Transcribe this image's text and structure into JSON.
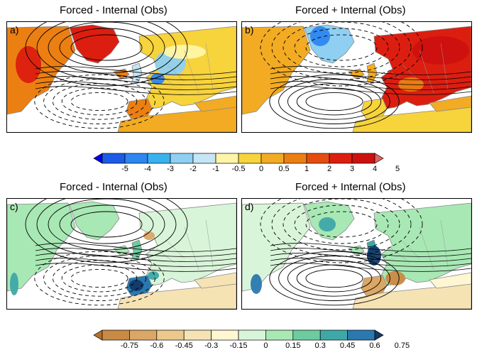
{
  "panels": [
    {
      "id": "a",
      "label": "a)",
      "title": "Forced - Internal (Obs)",
      "variable": "temperature"
    },
    {
      "id": "b",
      "label": "b)",
      "title": "Forced + Internal (Obs)",
      "variable": "temperature"
    },
    {
      "id": "c",
      "label": "c)",
      "title": "Forced - Internal (Obs)",
      "variable": "precipitation"
    },
    {
      "id": "d",
      "label": "d)",
      "title": "Forced + Internal (Obs)",
      "variable": "precipitation"
    }
  ],
  "colorbar_top": {
    "ticks": [
      "-5",
      "-4",
      "-3",
      "-2",
      "-1",
      "-0.5",
      "0",
      "0.5",
      "1",
      "2",
      "3",
      "4",
      "5"
    ],
    "colors": [
      "#0000ee",
      "#1c5be6",
      "#2e86f0",
      "#38b2ee",
      "#8fd0f2",
      "#c6e5f5",
      "#fff5a8",
      "#f7d33c",
      "#f2ab22",
      "#ec7f12",
      "#e54d10",
      "#dc1e10",
      "#cc1010",
      "#e86060"
    ]
  },
  "colorbar_bottom": {
    "ticks": [
      "-0.75",
      "-0.6",
      "-0.45",
      "-0.3",
      "-0.15",
      "0",
      "0.15",
      "0.3",
      "0.45",
      "0.6",
      "0.75"
    ],
    "colors": [
      "#b5702a",
      "#c98a45",
      "#dba766",
      "#ebc88c",
      "#f6e3b4",
      "#fff6d2",
      "#d9f5d9",
      "#a8e8b4",
      "#6ccca0",
      "#3ea8a8",
      "#2a78b0",
      "#113a6a"
    ]
  },
  "map_colors": {
    "ocean": "#ffffff",
    "coast": "#888888",
    "contour": "#000000"
  }
}
